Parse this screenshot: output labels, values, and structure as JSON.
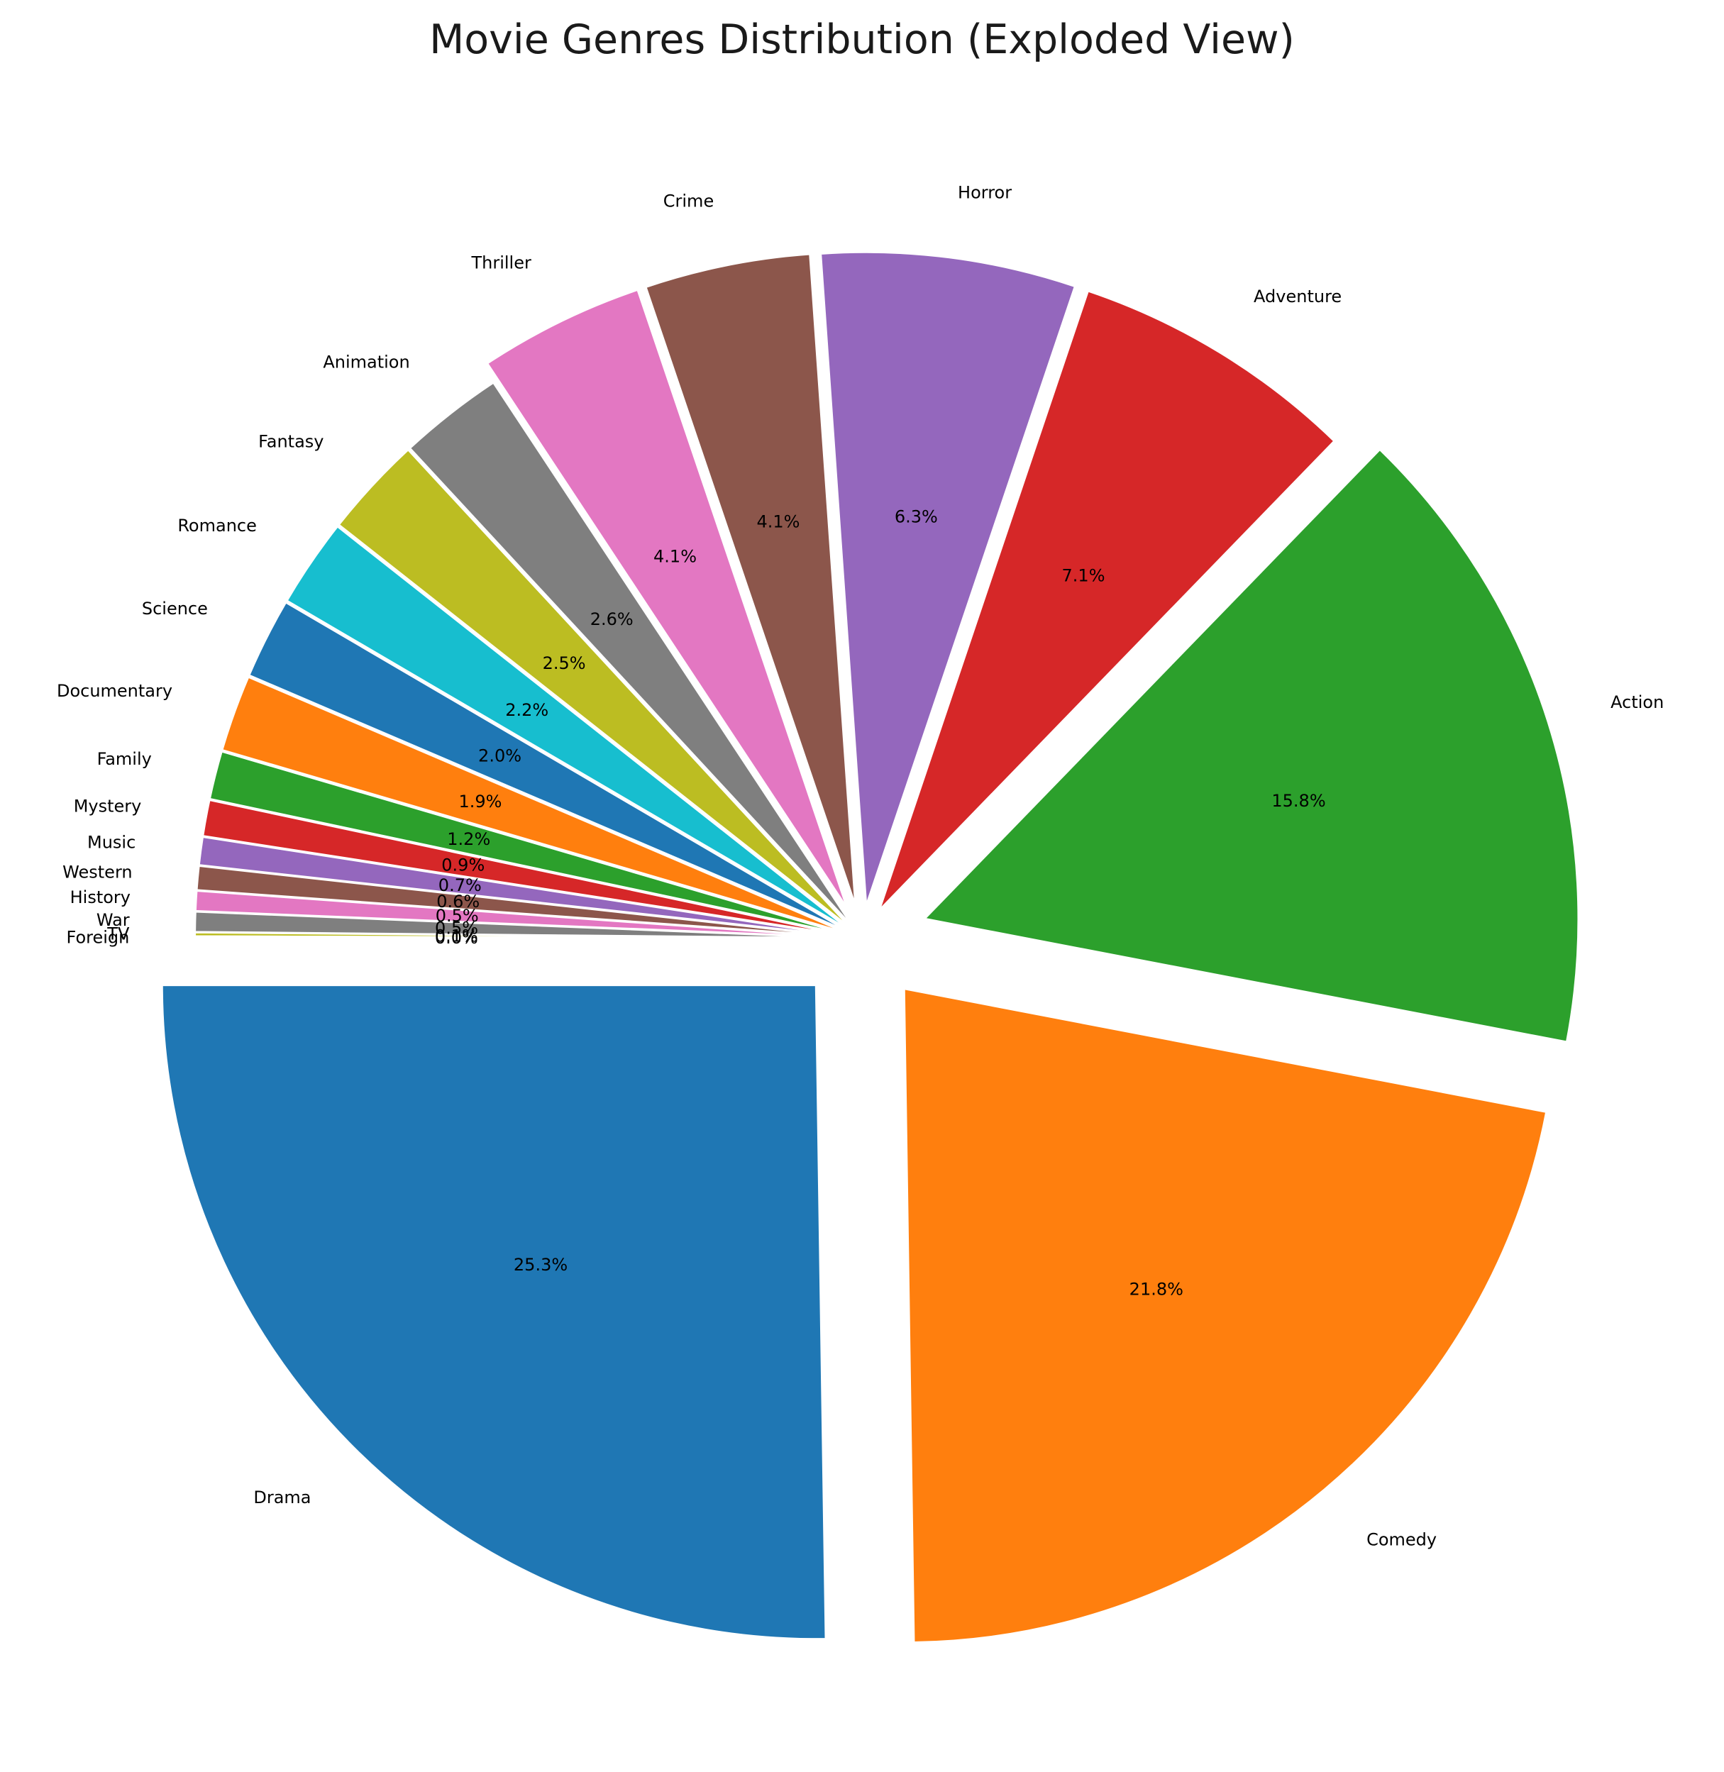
{
  "chart_data": {
    "type": "pie",
    "title": "Movie Genres Distribution (Exploded View)",
    "startangle": 180,
    "direction": "counterclockwise",
    "slices": [
      {
        "label": "Drama",
        "value": 25.3,
        "pct_text": "25.3%",
        "color": "#1f77b4",
        "explode": 0.1
      },
      {
        "label": "Comedy",
        "value": 21.8,
        "pct_text": "21.8%",
        "color": "#ff7f0e",
        "explode": 0.1
      },
      {
        "label": "Action",
        "value": 15.8,
        "pct_text": "15.8%",
        "color": "#2ca02c",
        "explode": 0.1
      },
      {
        "label": "Adventure",
        "value": 7.1,
        "pct_text": "7.1%",
        "color": "#d62728",
        "explode": 0.05
      },
      {
        "label": "Horror",
        "value": 6.3,
        "pct_text": "6.3%",
        "color": "#9467bd",
        "explode": 0.05
      },
      {
        "label": "Crime",
        "value": 4.1,
        "pct_text": "4.1%",
        "color": "#8c564b",
        "explode": 0.05
      },
      {
        "label": "Thriller",
        "value": 4.1,
        "pct_text": "4.1%",
        "color": "#e377c2",
        "explode": 0.05
      },
      {
        "label": "Animation",
        "value": 2.6,
        "pct_text": "2.6%",
        "color": "#7f7f7f",
        "explode": 0.02
      },
      {
        "label": "Fantasy",
        "value": 2.5,
        "pct_text": "2.5%",
        "color": "#bcbd22",
        "explode": 0.02
      },
      {
        "label": "Romance",
        "value": 2.2,
        "pct_text": "2.2%",
        "color": "#17becf",
        "explode": 0.02
      },
      {
        "label": "Science",
        "value": 2.0,
        "pct_text": "2.0%",
        "color": "#1f77b4",
        "explode": 0.02
      },
      {
        "label": "Documentary",
        "value": 1.9,
        "pct_text": "1.9%",
        "color": "#ff7f0e",
        "explode": 0.02
      },
      {
        "label": "Family",
        "value": 1.2,
        "pct_text": "1.2%",
        "color": "#2ca02c",
        "explode": 0.02
      },
      {
        "label": "Mystery",
        "value": 0.9,
        "pct_text": "0.9%",
        "color": "#d62728",
        "explode": 0.02
      },
      {
        "label": "Music",
        "value": 0.7,
        "pct_text": "0.7%",
        "color": "#9467bd",
        "explode": 0.02
      },
      {
        "label": "Western",
        "value": 0.6,
        "pct_text": "0.6%",
        "color": "#8c564b",
        "explode": 0.02
      },
      {
        "label": "History",
        "value": 0.5,
        "pct_text": "0.5%",
        "color": "#e377c2",
        "explode": 0.02
      },
      {
        "label": "War",
        "value": 0.5,
        "pct_text": "0.5%",
        "color": "#7f7f7f",
        "explode": 0.02
      },
      {
        "label": "TV",
        "value": 0.1,
        "pct_text": "0.1%",
        "color": "#bcbd22",
        "explode": 0.02
      },
      {
        "label": "Foreign",
        "value": 0.05,
        "pct_text": "0.0%",
        "color": "#17becf",
        "explode": 0.02
      }
    ]
  }
}
